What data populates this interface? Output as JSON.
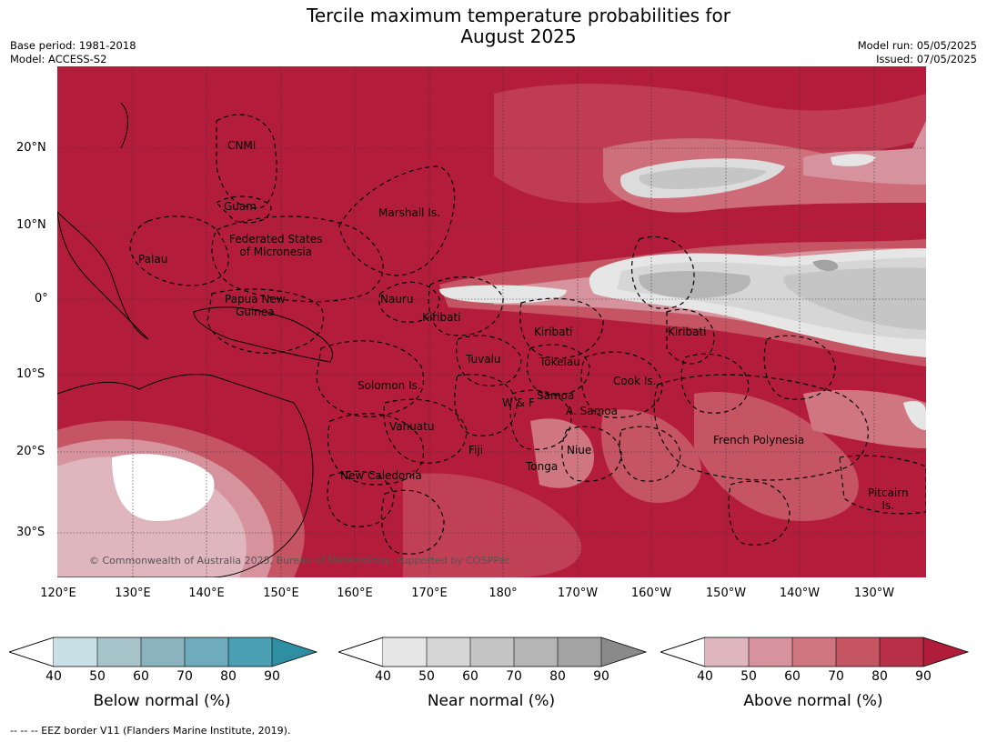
{
  "title": {
    "line1": "Tercile maximum temperature probabilities for",
    "line2": "August 2025"
  },
  "meta": {
    "base_period": "Base period: 1981-2018",
    "model": "Model: ACCESS-S2",
    "model_run": "Model run: 05/05/2025",
    "issued": "Issued: 07/05/2025"
  },
  "lat_labels": [
    "20°N",
    "10°N",
    "0°",
    "10°S",
    "20°S",
    "30°S"
  ],
  "lon_labels": [
    "120°E",
    "130°E",
    "140°E",
    "150°E",
    "160°E",
    "170°E",
    "180°",
    "170°W",
    "160°W",
    "150°W",
    "140°W",
    "130°W"
  ],
  "regions": {
    "cnmi": "CNMI",
    "guam": "Guam",
    "marshall": "Marshall Is.",
    "fsm_line1": "Federated States",
    "fsm_line2": "of Micronesia",
    "palau": "Palau",
    "png_line1": "Papua New",
    "png_line2": "Guinea",
    "nauru": "Nauru",
    "kiribati_w": "Kiribati",
    "kiribati_c": "Kiribati",
    "kiribati_e": "Kiribati",
    "tuvalu": "Tuvalu",
    "tokelau": "Tokelau",
    "cook": "Cook Is.",
    "solomon": "Solomon Is.",
    "wf": "W & F",
    "samoa": "Samoa",
    "asamoa": "A. Samoa",
    "vanuatu": "Vanuatu",
    "fiji": "Fiji",
    "niue": "Niue",
    "tonga": "Tonga",
    "frenchpoly": "French Polynesia",
    "newcal": "New Caledonia",
    "pitcairn_line1": "Pitcairn",
    "pitcairn_line2": "Is."
  },
  "copyright": "© Commonwealth of Australia 2025, Bureau of Meteorology, supported by COSPPac",
  "colorbars": {
    "ticks": [
      "40",
      "50",
      "60",
      "70",
      "80",
      "90"
    ],
    "below": {
      "title": "Below normal (%)",
      "colors": [
        "#c9e0e6",
        "#a7c4ca",
        "#8ab3bd",
        "#6eacbd",
        "#4aa0b2",
        "#2e8fa3"
      ]
    },
    "near": {
      "title": "Near normal (%)",
      "colors": [
        "#e6e6e6",
        "#d6d6d6",
        "#c5c5c5",
        "#b5b5b5",
        "#a3a3a3",
        "#8a8a8a"
      ]
    },
    "above": {
      "title": "Above normal (%)",
      "colors": [
        "#dfb6bd",
        "#d6939e",
        "#cf7680",
        "#c65564",
        "#b83047",
        "#b01c3a"
      ]
    }
  },
  "footer": "--  --  -- EEZ border V11 (Flanders Marine Institute, 2019)."
}
